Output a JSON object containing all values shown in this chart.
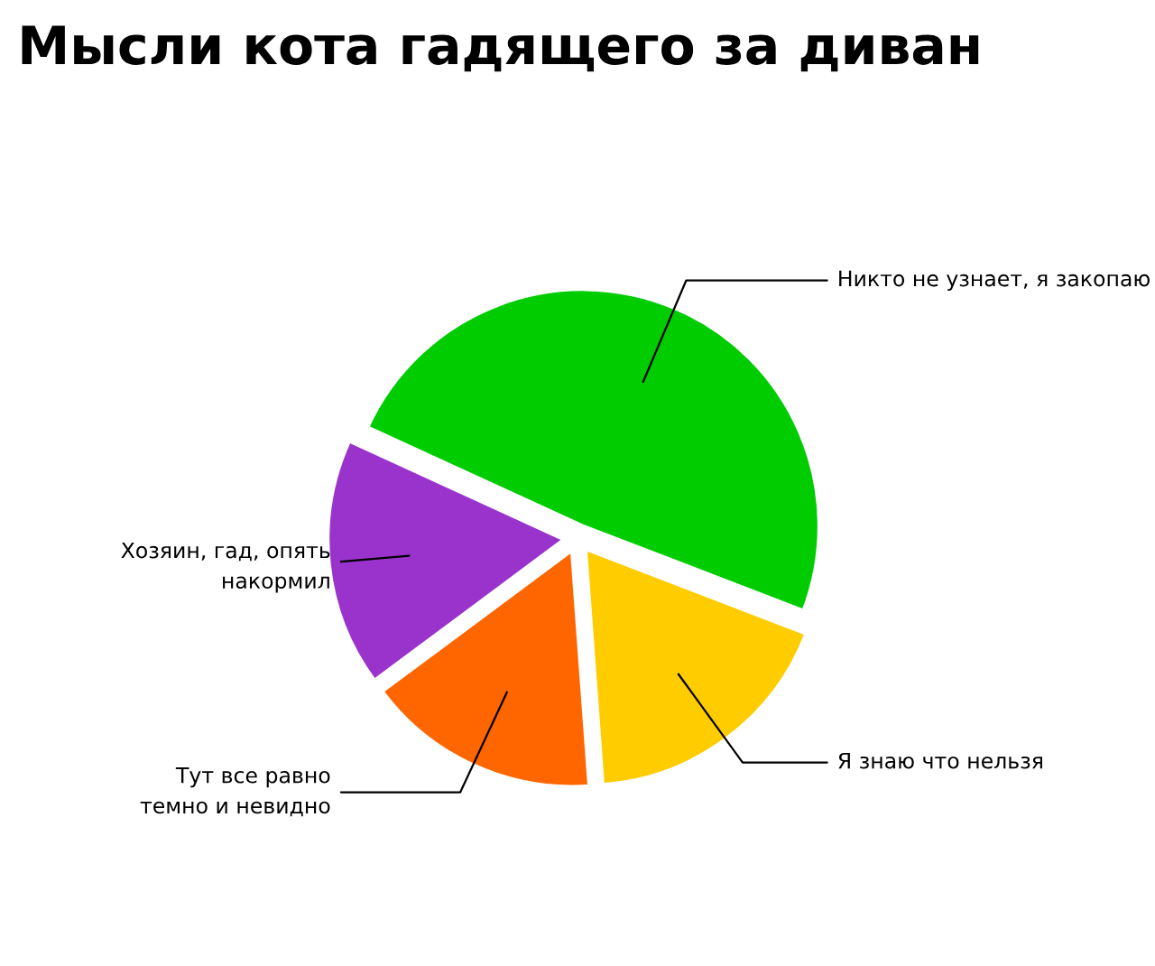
{
  "chart_data": {
    "type": "pie",
    "title": "Мысли кота гадящего за диван",
    "categories": [
      "Никто не узнает, я закопаю",
      "Хозяин, гад, опять\nнакормил",
      "Тут все равно\nтемно и невидно",
      "Я знаю что нельзя"
    ],
    "values": [
      49,
      17,
      16,
      18
    ],
    "colors": [
      "#00cc00",
      "#9933cc",
      "#ff6600",
      "#ffcc00"
    ],
    "legend": false
  }
}
